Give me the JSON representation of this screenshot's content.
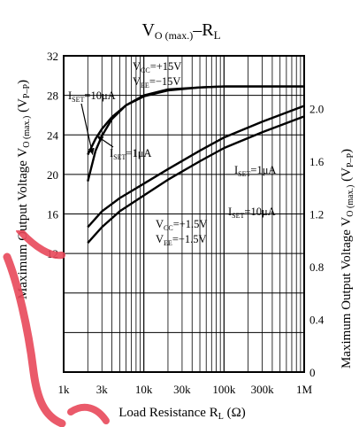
{
  "chart_data": {
    "type": "line",
    "title": {
      "main": "V",
      "sub": "O (max.)",
      "tail": "–R",
      "tail_sub": "L"
    },
    "xlabel": {
      "main": "Load Resistance  R",
      "sub": "L",
      "tail": " (Ω)"
    },
    "ylabel_left": {
      "main": "Maximum Output Voltage  V",
      "sub": "O (max.)",
      "tail": " (V",
      "tail_sub": "P–P",
      "end": ")"
    },
    "ylabel_right": {
      "main": "Maximum Output Voltage  V",
      "sub": "O (max.)",
      "tail": " (V",
      "tail_sub": "P–P",
      "end": ")"
    },
    "x_scale": "log",
    "xlim": [
      1000,
      1000000
    ],
    "ylim_left": [
      0,
      32
    ],
    "ylim_right": [
      0,
      2.4
    ],
    "x_ticks": [
      {
        "value": 1000,
        "label": "1k"
      },
      {
        "value": 3000,
        "label": "3k"
      },
      {
        "value": 10000,
        "label": "10k"
      },
      {
        "value": 30000,
        "label": "30k"
      },
      {
        "value": 100000,
        "label": "100k"
      },
      {
        "value": 300000,
        "label": "300k"
      },
      {
        "value": 1000000,
        "label": "1M"
      }
    ],
    "y_ticks_left": [
      {
        "value": 12,
        "label": "12"
      },
      {
        "value": 16,
        "label": "16"
      },
      {
        "value": 20,
        "label": "20"
      },
      {
        "value": 24,
        "label": "24"
      },
      {
        "value": 28,
        "label": "28"
      },
      {
        "value": 32,
        "label": "32"
      }
    ],
    "y_ticks_right": [
      {
        "value": 0,
        "label": "0"
      },
      {
        "value": 0.4,
        "label": "0.4"
      },
      {
        "value": 0.8,
        "label": "0.8"
      },
      {
        "value": 1.2,
        "label": "1.2"
      },
      {
        "value": 1.6,
        "label": "1.6"
      },
      {
        "value": 2.0,
        "label": "2.0"
      }
    ],
    "grid": true,
    "series": [
      {
        "id": "pm15_10uA",
        "axis": "left",
        "x": [
          2000,
          2500,
          3000,
          4000,
          6000,
          10000,
          20000,
          50000,
          100000,
          300000,
          1000000
        ],
        "y": [
          19.3,
          22.4,
          23.9,
          25.6,
          27.0,
          28.0,
          28.6,
          28.8,
          28.9,
          28.9,
          28.9
        ]
      },
      {
        "id": "pm15_1uA",
        "axis": "left",
        "x": [
          2000,
          2500,
          3000,
          4000,
          6000,
          10000,
          20000,
          50000,
          100000,
          300000,
          1000000
        ],
        "y": [
          22.0,
          23.6,
          24.6,
          25.8,
          27.0,
          27.9,
          28.5,
          28.8,
          28.9,
          28.9,
          28.9
        ]
      },
      {
        "id": "pm1_5_1uA",
        "axis": "right",
        "x": [
          2000,
          3000,
          5000,
          10000,
          20000,
          50000,
          100000,
          300000,
          1000000
        ],
        "y": [
          1.1,
          1.22,
          1.32,
          1.43,
          1.54,
          1.68,
          1.78,
          1.9,
          2.02
        ]
      },
      {
        "id": "pm1_5_10uA",
        "axis": "right",
        "x": [
          2000,
          3000,
          5000,
          10000,
          20000,
          50000,
          100000,
          300000,
          1000000
        ],
        "y": [
          0.98,
          1.1,
          1.22,
          1.34,
          1.46,
          1.6,
          1.7,
          1.82,
          1.94
        ]
      }
    ],
    "annotations": [
      {
        "id": "vcc15",
        "lines": [
          {
            "main": "V",
            "sub": "CC",
            "tail": "=+15V"
          },
          {
            "main": "V",
            "sub": "EE",
            "tail": "=−15V"
          }
        ]
      },
      {
        "id": "iset10_top",
        "lines": [
          {
            "main": "I",
            "sub": "SET",
            "tail": "=10μA"
          }
        ]
      },
      {
        "id": "iset1_top",
        "lines": [
          {
            "main": "I",
            "sub": "SET",
            "tail": "=1μA"
          }
        ]
      },
      {
        "id": "iset1_bottom",
        "lines": [
          {
            "main": "I",
            "sub": "SET",
            "tail": "=1μA"
          }
        ]
      },
      {
        "id": "iset10_bottom",
        "lines": [
          {
            "main": "I",
            "sub": "SET",
            "tail": "=10μA"
          }
        ]
      },
      {
        "id": "vcc1_5",
        "lines": [
          {
            "main": "V",
            "sub": "CC",
            "tail": "=+1.5V"
          },
          {
            "main": "V",
            "sub": "EE",
            "tail": "=−1.5V"
          }
        ]
      }
    ],
    "colors": {
      "line": "#000000",
      "watermark": "#e8485a"
    }
  }
}
